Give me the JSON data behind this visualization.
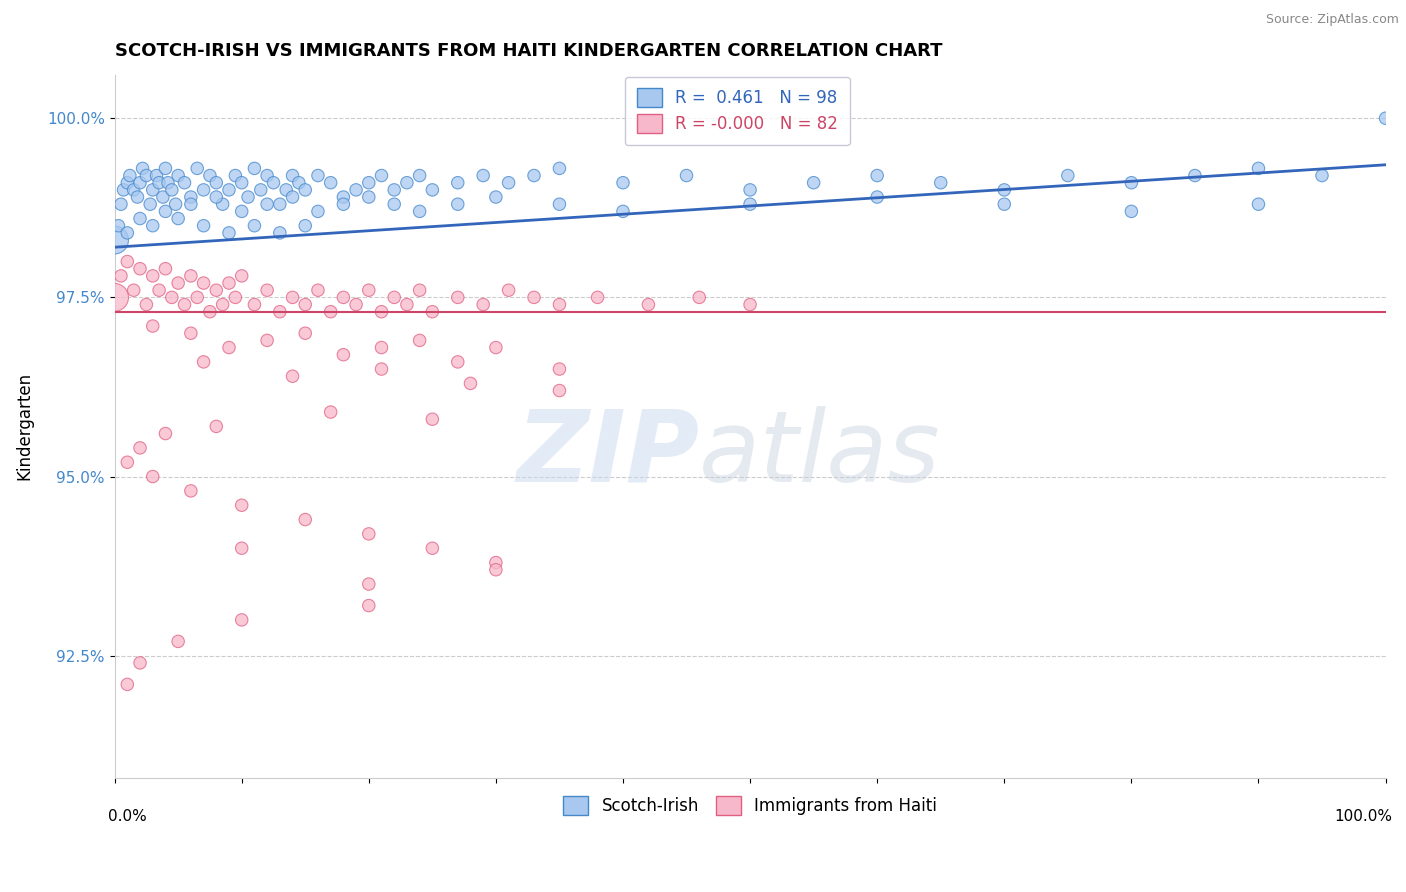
{
  "title": "SCOTCH-IRISH VS IMMIGRANTS FROM HAITI KINDERGARTEN CORRELATION CHART",
  "source": "Source: ZipAtlas.com",
  "ylabel": "Kindergarten",
  "xlim": [
    0.0,
    1.0
  ],
  "ylim": [
    90.8,
    100.6
  ],
  "blue_R": "0.461",
  "blue_N": "98",
  "pink_R": "-0.000",
  "pink_N": "82",
  "blue_fill": "#a8c8f0",
  "pink_fill": "#f8b8cc",
  "blue_edge": "#4488cc",
  "pink_edge": "#e06080",
  "blue_line_color": "#3366bb",
  "pink_line_color": "#cc4466",
  "watermark_zip": "ZIP",
  "watermark_atlas": "atlas",
  "blue_line_x0": 0.0,
  "blue_line_x1": 1.0,
  "blue_line_y0": 98.2,
  "blue_line_y1": 99.35,
  "pink_line_y": 97.3,
  "ytick_vals": [
    92.5,
    95.0,
    97.5,
    100.0
  ],
  "ytick_labels": [
    "92.5%",
    "95.0%",
    "97.5%",
    "100.0%"
  ],
  "blue_x": [
    0.0,
    0.003,
    0.005,
    0.007,
    0.01,
    0.012,
    0.015,
    0.018,
    0.02,
    0.022,
    0.025,
    0.028,
    0.03,
    0.033,
    0.035,
    0.038,
    0.04,
    0.042,
    0.045,
    0.048,
    0.05,
    0.055,
    0.06,
    0.065,
    0.07,
    0.075,
    0.08,
    0.085,
    0.09,
    0.095,
    0.1,
    0.105,
    0.11,
    0.115,
    0.12,
    0.125,
    0.13,
    0.135,
    0.14,
    0.145,
    0.15,
    0.16,
    0.17,
    0.18,
    0.19,
    0.2,
    0.21,
    0.22,
    0.23,
    0.24,
    0.25,
    0.27,
    0.29,
    0.31,
    0.33,
    0.35,
    0.4,
    0.45,
    0.5,
    0.55,
    0.6,
    0.65,
    0.7,
    0.75,
    0.8,
    0.85,
    0.9,
    0.95,
    1.0,
    0.02,
    0.04,
    0.06,
    0.08,
    0.1,
    0.12,
    0.14,
    0.16,
    0.18,
    0.2,
    0.22,
    0.24,
    0.27,
    0.3,
    0.35,
    0.4,
    0.5,
    0.6,
    0.7,
    0.8,
    0.9,
    0.01,
    0.03,
    0.05,
    0.07,
    0.09,
    0.11,
    0.13,
    0.15
  ],
  "blue_y": [
    98.3,
    98.5,
    98.8,
    99.0,
    99.1,
    99.2,
    99.0,
    98.9,
    99.1,
    99.3,
    99.2,
    98.8,
    99.0,
    99.2,
    99.1,
    98.9,
    99.3,
    99.1,
    99.0,
    98.8,
    99.2,
    99.1,
    98.9,
    99.3,
    99.0,
    99.2,
    99.1,
    98.8,
    99.0,
    99.2,
    99.1,
    98.9,
    99.3,
    99.0,
    99.2,
    99.1,
    98.8,
    99.0,
    99.2,
    99.1,
    99.0,
    99.2,
    99.1,
    98.9,
    99.0,
    99.1,
    99.2,
    99.0,
    99.1,
    99.2,
    99.0,
    99.1,
    99.2,
    99.1,
    99.2,
    99.3,
    99.1,
    99.2,
    99.0,
    99.1,
    99.2,
    99.1,
    99.0,
    99.2,
    99.1,
    99.2,
    99.3,
    99.2,
    100.0,
    98.6,
    98.7,
    98.8,
    98.9,
    98.7,
    98.8,
    98.9,
    98.7,
    98.8,
    98.9,
    98.8,
    98.7,
    98.8,
    98.9,
    98.8,
    98.7,
    98.8,
    98.9,
    98.8,
    98.7,
    98.8,
    98.4,
    98.5,
    98.6,
    98.5,
    98.4,
    98.5,
    98.4,
    98.5
  ],
  "blue_sizes": [
    400,
    80,
    80,
    80,
    80,
    80,
    80,
    80,
    80,
    80,
    80,
    80,
    80,
    80,
    80,
    80,
    80,
    80,
    80,
    80,
    80,
    80,
    80,
    80,
    80,
    80,
    80,
    80,
    80,
    80,
    80,
    80,
    80,
    80,
    80,
    80,
    80,
    80,
    80,
    80,
    80,
    80,
    80,
    80,
    80,
    80,
    80,
    80,
    80,
    80,
    80,
    80,
    80,
    80,
    80,
    80,
    80,
    80,
    80,
    80,
    80,
    80,
    80,
    80,
    80,
    80,
    80,
    80,
    80,
    80,
    80,
    80,
    80,
    80,
    80,
    80,
    80,
    80,
    80,
    80,
    80,
    80,
    80,
    80,
    80,
    80,
    80,
    80,
    80,
    80,
    80,
    80,
    80,
    80,
    80,
    80,
    80,
    80
  ],
  "pink_x": [
    0.0,
    0.005,
    0.01,
    0.015,
    0.02,
    0.025,
    0.03,
    0.035,
    0.04,
    0.045,
    0.05,
    0.055,
    0.06,
    0.065,
    0.07,
    0.075,
    0.08,
    0.085,
    0.09,
    0.095,
    0.1,
    0.11,
    0.12,
    0.13,
    0.14,
    0.15,
    0.16,
    0.17,
    0.18,
    0.19,
    0.2,
    0.21,
    0.22,
    0.23,
    0.24,
    0.25,
    0.27,
    0.29,
    0.31,
    0.33,
    0.35,
    0.38,
    0.42,
    0.46,
    0.5,
    0.03,
    0.06,
    0.09,
    0.12,
    0.15,
    0.18,
    0.21,
    0.24,
    0.27,
    0.3,
    0.35,
    0.07,
    0.14,
    0.21,
    0.28,
    0.35,
    0.25,
    0.17,
    0.08,
    0.04,
    0.02,
    0.01,
    0.03,
    0.06,
    0.1,
    0.15,
    0.2,
    0.25,
    0.3,
    0.1,
    0.2,
    0.3,
    0.2,
    0.1,
    0.05,
    0.02,
    0.01
  ],
  "pink_y": [
    97.5,
    97.8,
    98.0,
    97.6,
    97.9,
    97.4,
    97.8,
    97.6,
    97.9,
    97.5,
    97.7,
    97.4,
    97.8,
    97.5,
    97.7,
    97.3,
    97.6,
    97.4,
    97.7,
    97.5,
    97.8,
    97.4,
    97.6,
    97.3,
    97.5,
    97.4,
    97.6,
    97.3,
    97.5,
    97.4,
    97.6,
    97.3,
    97.5,
    97.4,
    97.6,
    97.3,
    97.5,
    97.4,
    97.6,
    97.5,
    97.4,
    97.5,
    97.4,
    97.5,
    97.4,
    97.1,
    97.0,
    96.8,
    96.9,
    97.0,
    96.7,
    96.8,
    96.9,
    96.6,
    96.8,
    96.5,
    96.6,
    96.4,
    96.5,
    96.3,
    96.2,
    95.8,
    95.9,
    95.7,
    95.6,
    95.4,
    95.2,
    95.0,
    94.8,
    94.6,
    94.4,
    94.2,
    94.0,
    93.8,
    94.0,
    93.5,
    93.7,
    93.2,
    93.0,
    92.7,
    92.4,
    92.1
  ],
  "pink_sizes": [
    400,
    80,
    80,
    80,
    80,
    80,
    80,
    80,
    80,
    80,
    80,
    80,
    80,
    80,
    80,
    80,
    80,
    80,
    80,
    80,
    80,
    80,
    80,
    80,
    80,
    80,
    80,
    80,
    80,
    80,
    80,
    80,
    80,
    80,
    80,
    80,
    80,
    80,
    80,
    80,
    80,
    80,
    80,
    80,
    80,
    80,
    80,
    80,
    80,
    80,
    80,
    80,
    80,
    80,
    80,
    80,
    80,
    80,
    80,
    80,
    80,
    80,
    80,
    80,
    80,
    80,
    80,
    80,
    80,
    80,
    80,
    80,
    80,
    80,
    80,
    80,
    80,
    80,
    80,
    80,
    80,
    80
  ]
}
